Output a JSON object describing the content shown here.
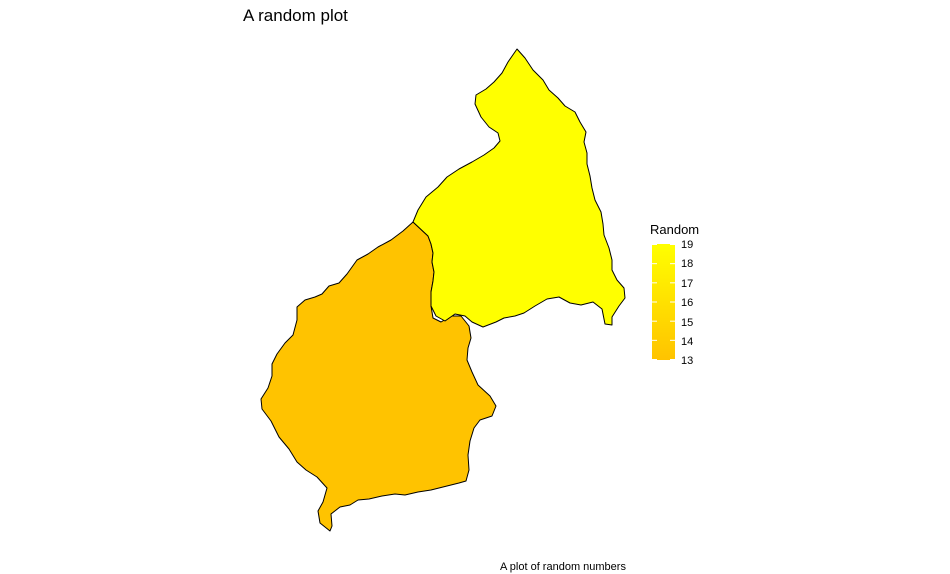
{
  "title": "A random plot",
  "caption": "A plot of random numbers",
  "legend": {
    "title": "Random",
    "ticks": [
      "19",
      "18",
      "17",
      "16",
      "15",
      "14",
      "13"
    ],
    "range": [
      13,
      19
    ],
    "color_low": "#FFC300",
    "color_high": "#FFFF00"
  },
  "regions": [
    {
      "name": "north",
      "value": 19,
      "color": "#FFFF00"
    },
    {
      "name": "south",
      "value": 13,
      "color": "#FFC300"
    }
  ],
  "border_color": "#000000"
}
